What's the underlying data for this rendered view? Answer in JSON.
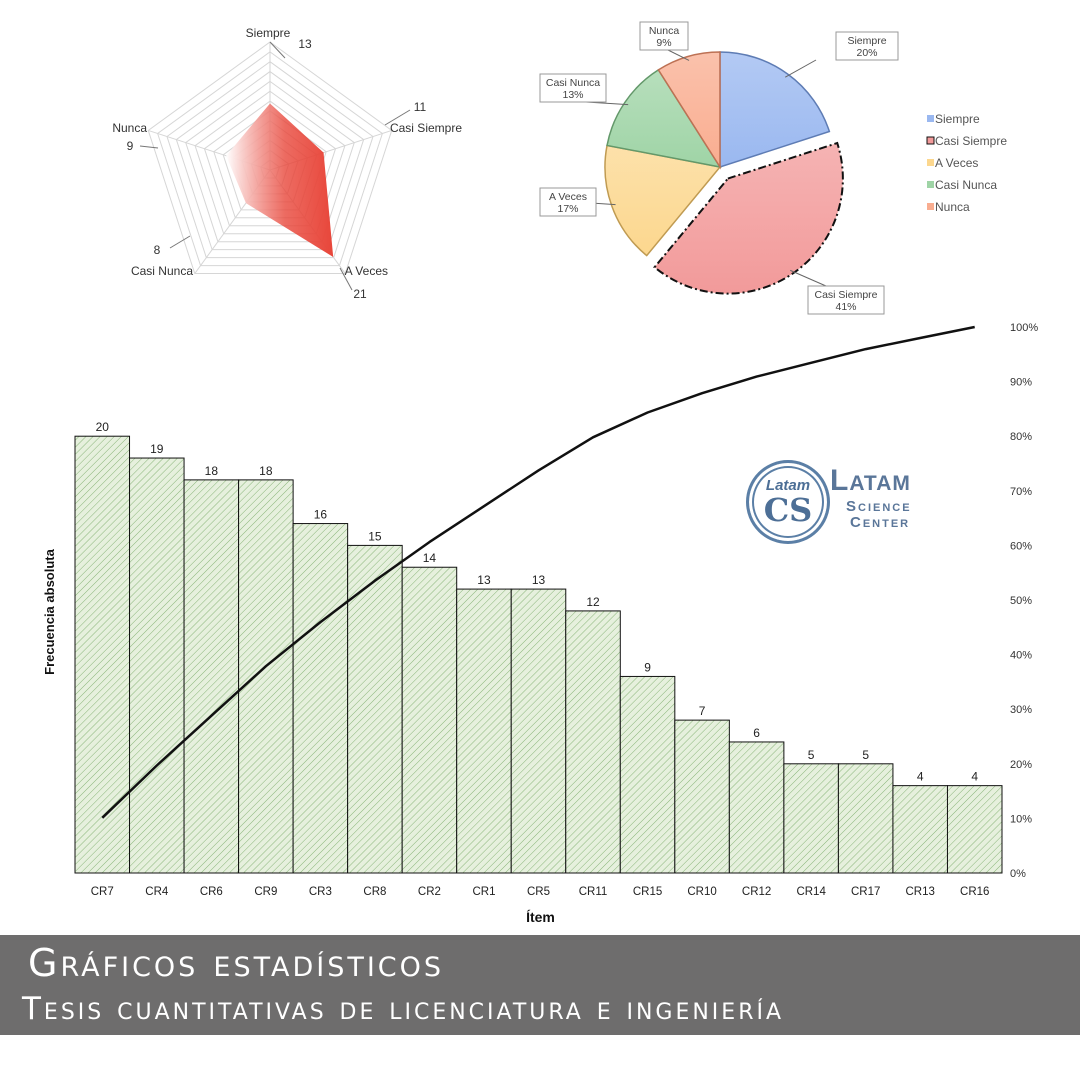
{
  "chart_data": [
    {
      "type": "radar",
      "axes": [
        "Siempre",
        "Casi Siempre",
        "A Veces",
        "Casi Nunca",
        "Nunca"
      ],
      "values": [
        13,
        11,
        21,
        8,
        9
      ],
      "max": 25,
      "color": "#e8463a"
    },
    {
      "type": "pie",
      "slices": [
        {
          "name": "Siempre",
          "value": 20,
          "label": "20%",
          "color": "#9ab8f0"
        },
        {
          "name": "Casi Siempre",
          "value": 41,
          "label": "41%",
          "color": "#f29a9a",
          "exploded": true
        },
        {
          "name": "A Veces",
          "value": 17,
          "label": "17%",
          "color": "#fcd78e"
        },
        {
          "name": "Casi Nunca",
          "value": 13,
          "label": "13%",
          "color": "#9fd4a6"
        },
        {
          "name": "Nunca",
          "value": 9,
          "label": "9%",
          "color": "#f9ad90"
        }
      ],
      "legend": [
        "Siempre",
        "Casi Siempre",
        "A Veces",
        "Casi Nunca",
        "Nunca"
      ],
      "legend_position": "right"
    },
    {
      "type": "bar",
      "title": "",
      "xlabel": "Ítem",
      "ylabel": "Frecuencia absoluta",
      "categories": [
        "CR7",
        "CR4",
        "CR6",
        "CR9",
        "CR3",
        "CR8",
        "CR2",
        "CR1",
        "CR5",
        "CR11",
        "CR15",
        "CR10",
        "CR12",
        "CR14",
        "CR17",
        "CR13",
        "CR16"
      ],
      "values": [
        20,
        19,
        18,
        18,
        16,
        15,
        14,
        13,
        13,
        12,
        9,
        7,
        6,
        5,
        5,
        4,
        4
      ],
      "ylim": [
        0,
        25
      ],
      "line": {
        "name": "Porcentaje acumulado",
        "axis": "right",
        "ylim": [
          0,
          1
        ],
        "ticks": [
          "0%",
          "10%",
          "20%",
          "30%",
          "40%",
          "50%",
          "60%",
          "70%",
          "80%",
          "90%",
          "100%"
        ]
      },
      "bar_color": "#e6f0dd",
      "hatch_color": "#7fae6e"
    }
  ],
  "logo": {
    "badge_text": "Latam",
    "badge_letters": "CS",
    "line1": "Latam",
    "line2": "Science",
    "line3": "Center"
  },
  "banner": {
    "title": "Gráficos estadísticos",
    "subtitle": "Tesis cuantitativas de licenciatura e ingeniería"
  }
}
